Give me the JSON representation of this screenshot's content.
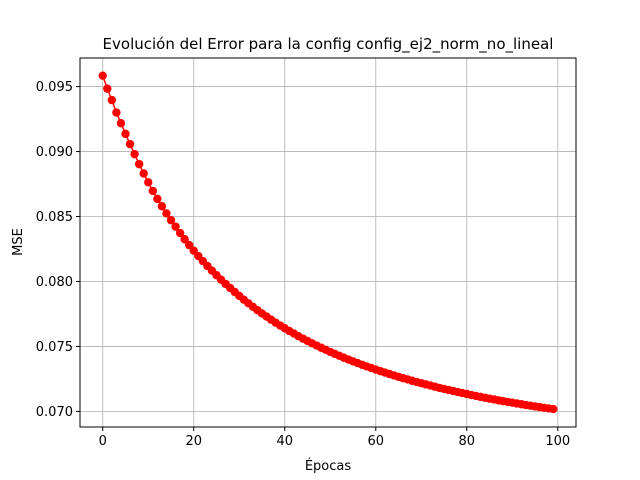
{
  "chart_data": {
    "type": "scatter",
    "title": "Evolución del Error para la config config_ej2_norm_no_lineal",
    "xlabel": "Épocas",
    "ylabel": "MSE",
    "xlim": [
      -5,
      104
    ],
    "ylim": [
      0.0688,
      0.0972
    ],
    "grid": true,
    "marker_color": "#ff0000",
    "line_color": "#ff0000",
    "x_ticks": [
      0,
      20,
      40,
      60,
      80,
      100
    ],
    "x_tick_labels": [
      "0",
      "20",
      "40",
      "60",
      "80",
      "100"
    ],
    "y_ticks": [
      0.07,
      0.075,
      0.08,
      0.085,
      0.09,
      0.095
    ],
    "y_tick_labels": [
      "0.070",
      "0.075",
      "0.080",
      "0.085",
      "0.090",
      "0.095"
    ],
    "series": [
      {
        "name": "MSE",
        "x": [
          0,
          1,
          2,
          3,
          4,
          5,
          6,
          7,
          8,
          9,
          10,
          11,
          12,
          13,
          14,
          15,
          16,
          17,
          18,
          19,
          20,
          21,
          22,
          23,
          24,
          25,
          26,
          27,
          28,
          29,
          30,
          31,
          32,
          33,
          34,
          35,
          36,
          37,
          38,
          39,
          40,
          41,
          42,
          43,
          44,
          45,
          46,
          47,
          48,
          49,
          50,
          51,
          52,
          53,
          54,
          55,
          56,
          57,
          58,
          59,
          60,
          61,
          62,
          63,
          64,
          65,
          66,
          67,
          68,
          69,
          70,
          71,
          72,
          73,
          74,
          75,
          76,
          77,
          78,
          79,
          80,
          81,
          82,
          83,
          84,
          85,
          86,
          87,
          88,
          89,
          90,
          91,
          92,
          93,
          94,
          95,
          96,
          97,
          98,
          99
        ],
        "values": [
          0.09584,
          0.09484,
          0.09396,
          0.093,
          0.09218,
          0.09136,
          0.09057,
          0.0898,
          0.08903,
          0.08831,
          0.08763,
          0.08697,
          0.08636,
          0.08579,
          0.08524,
          0.08472,
          0.08422,
          0.08373,
          0.08325,
          0.0828,
          0.08237,
          0.08196,
          0.08157,
          0.08119,
          0.08083,
          0.08048,
          0.08014,
          0.07981,
          0.0795,
          0.07919,
          0.07889,
          0.0786,
          0.07832,
          0.07805,
          0.07779,
          0.07754,
          0.0773,
          0.07706,
          0.07683,
          0.07661,
          0.0764,
          0.07619,
          0.07599,
          0.07579,
          0.0756,
          0.07542,
          0.07524,
          0.07507,
          0.0749,
          0.07474,
          0.07458,
          0.07443,
          0.07428,
          0.07413,
          0.07399,
          0.07385,
          0.07372,
          0.07359,
          0.07346,
          0.07334,
          0.07322,
          0.0731,
          0.07299,
          0.07288,
          0.07277,
          0.07266,
          0.07256,
          0.07246,
          0.07236,
          0.07226,
          0.07217,
          0.07208,
          0.07199,
          0.0719,
          0.07181,
          0.07173,
          0.07165,
          0.07157,
          0.07149,
          0.07141,
          0.07134,
          0.07126,
          0.07119,
          0.07112,
          0.07105,
          0.07098,
          0.07092,
          0.07085,
          0.07079,
          0.07073,
          0.07067,
          0.07061,
          0.07055,
          0.07049,
          0.07044,
          0.07038,
          0.07033,
          0.07028,
          0.07023,
          0.07018
        ]
      }
    ]
  }
}
